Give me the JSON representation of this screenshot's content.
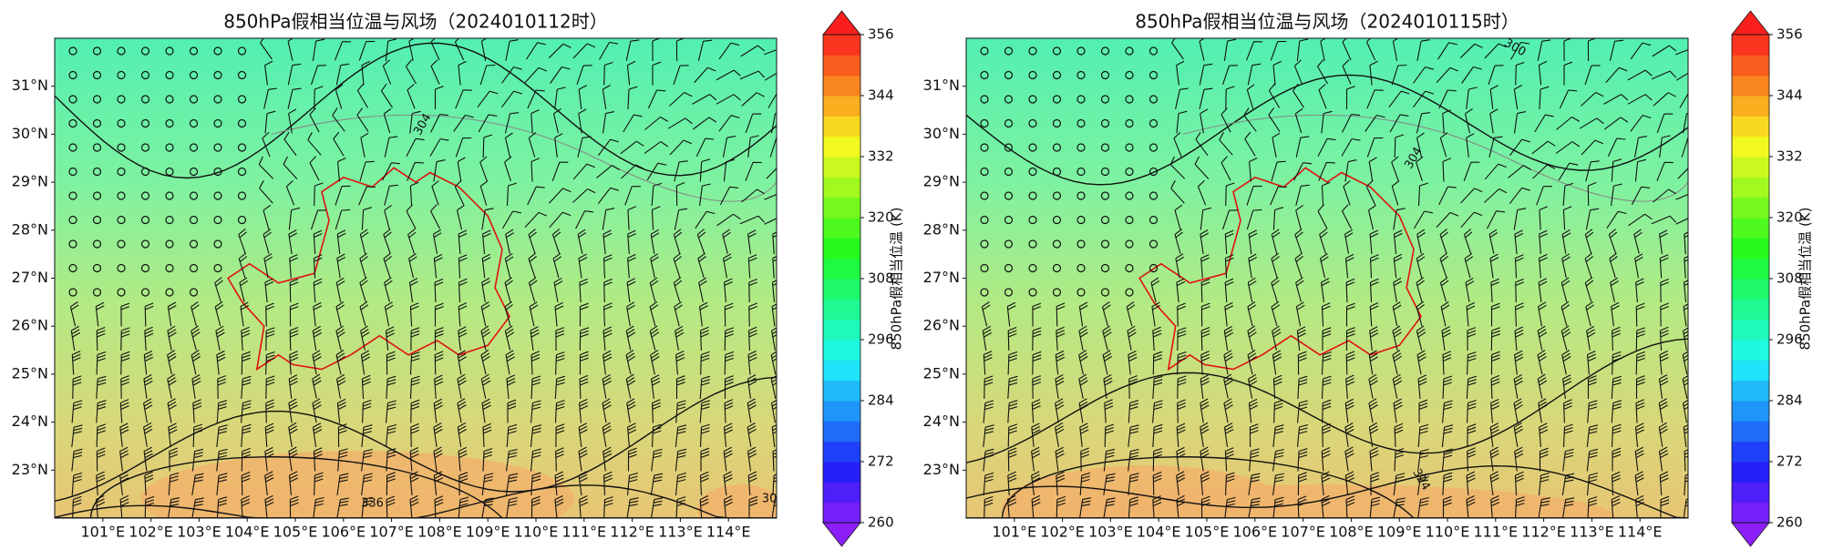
{
  "panels": [
    {
      "title": "850hPa假相当位温与风场（2024010112时）",
      "xlim": [
        100,
        115
      ],
      "ylim": [
        22,
        32
      ],
      "xticks": [
        {
          "value": 101,
          "label": "101°E"
        },
        {
          "value": 102,
          "label": "102°E"
        },
        {
          "value": 103,
          "label": "103°E"
        },
        {
          "value": 104,
          "label": "104°E"
        },
        {
          "value": 105,
          "label": "105°E"
        },
        {
          "value": 106,
          "label": "106°E"
        },
        {
          "value": 107,
          "label": "107°E"
        },
        {
          "value": 108,
          "label": "108°E"
        },
        {
          "value": 109,
          "label": "109°E"
        },
        {
          "value": 110,
          "label": "110°E"
        },
        {
          "value": 111,
          "label": "111°E"
        },
        {
          "value": 112,
          "label": "112°E"
        },
        {
          "value": 113,
          "label": "113°E"
        },
        {
          "value": 114,
          "label": "114°E"
        }
      ],
      "yticks": [
        {
          "value": 23,
          "label": "23°N"
        },
        {
          "value": 24,
          "label": "24°N"
        },
        {
          "value": 25,
          "label": "25°N"
        },
        {
          "value": 26,
          "label": "26°N"
        },
        {
          "value": 27,
          "label": "27°N"
        },
        {
          "value": 28,
          "label": "28°N"
        },
        {
          "value": 29,
          "label": "29°N"
        },
        {
          "value": 30,
          "label": "30°N"
        },
        {
          "value": 31,
          "label": "31°N"
        }
      ],
      "contour_labels": [
        "304",
        "336",
        "30"
      ],
      "colorbar": {
        "label": "850hPa假相当位温 (K)",
        "clim": [
          260,
          356
        ],
        "ticks": [
          260,
          272,
          284,
          296,
          308,
          320,
          332,
          344,
          356
        ]
      }
    },
    {
      "title": "850hPa假相当位温与风场（2024010115时）",
      "xlim": [
        100,
        115
      ],
      "ylim": [
        22,
        32
      ],
      "xticks": [
        {
          "value": 101,
          "label": "101°E"
        },
        {
          "value": 102,
          "label": "102°E"
        },
        {
          "value": 103,
          "label": "103°E"
        },
        {
          "value": 104,
          "label": "104°E"
        },
        {
          "value": 105,
          "label": "105°E"
        },
        {
          "value": 106,
          "label": "106°E"
        },
        {
          "value": 107,
          "label": "107°E"
        },
        {
          "value": 108,
          "label": "108°E"
        },
        {
          "value": 109,
          "label": "109°E"
        },
        {
          "value": 110,
          "label": "110°E"
        },
        {
          "value": 111,
          "label": "111°E"
        },
        {
          "value": 112,
          "label": "112°E"
        },
        {
          "value": 113,
          "label": "113°E"
        },
        {
          "value": 114,
          "label": "114°E"
        }
      ],
      "yticks": [
        {
          "value": 23,
          "label": "23°N"
        },
        {
          "value": 24,
          "label": "24°N"
        },
        {
          "value": 25,
          "label": "25°N"
        },
        {
          "value": 26,
          "label": "26°N"
        },
        {
          "value": 27,
          "label": "27°N"
        },
        {
          "value": 28,
          "label": "28°N"
        },
        {
          "value": 29,
          "label": "29°N"
        },
        {
          "value": 30,
          "label": "30°N"
        },
        {
          "value": 31,
          "label": "31°N"
        }
      ],
      "contour_labels": [
        "300",
        "304",
        "324"
      ],
      "colorbar": {
        "label": "850hPa假相当位温 (K)",
        "clim": [
          260,
          356
        ],
        "ticks": [
          260,
          272,
          284,
          296,
          308,
          320,
          332,
          344,
          356
        ]
      }
    }
  ]
}
